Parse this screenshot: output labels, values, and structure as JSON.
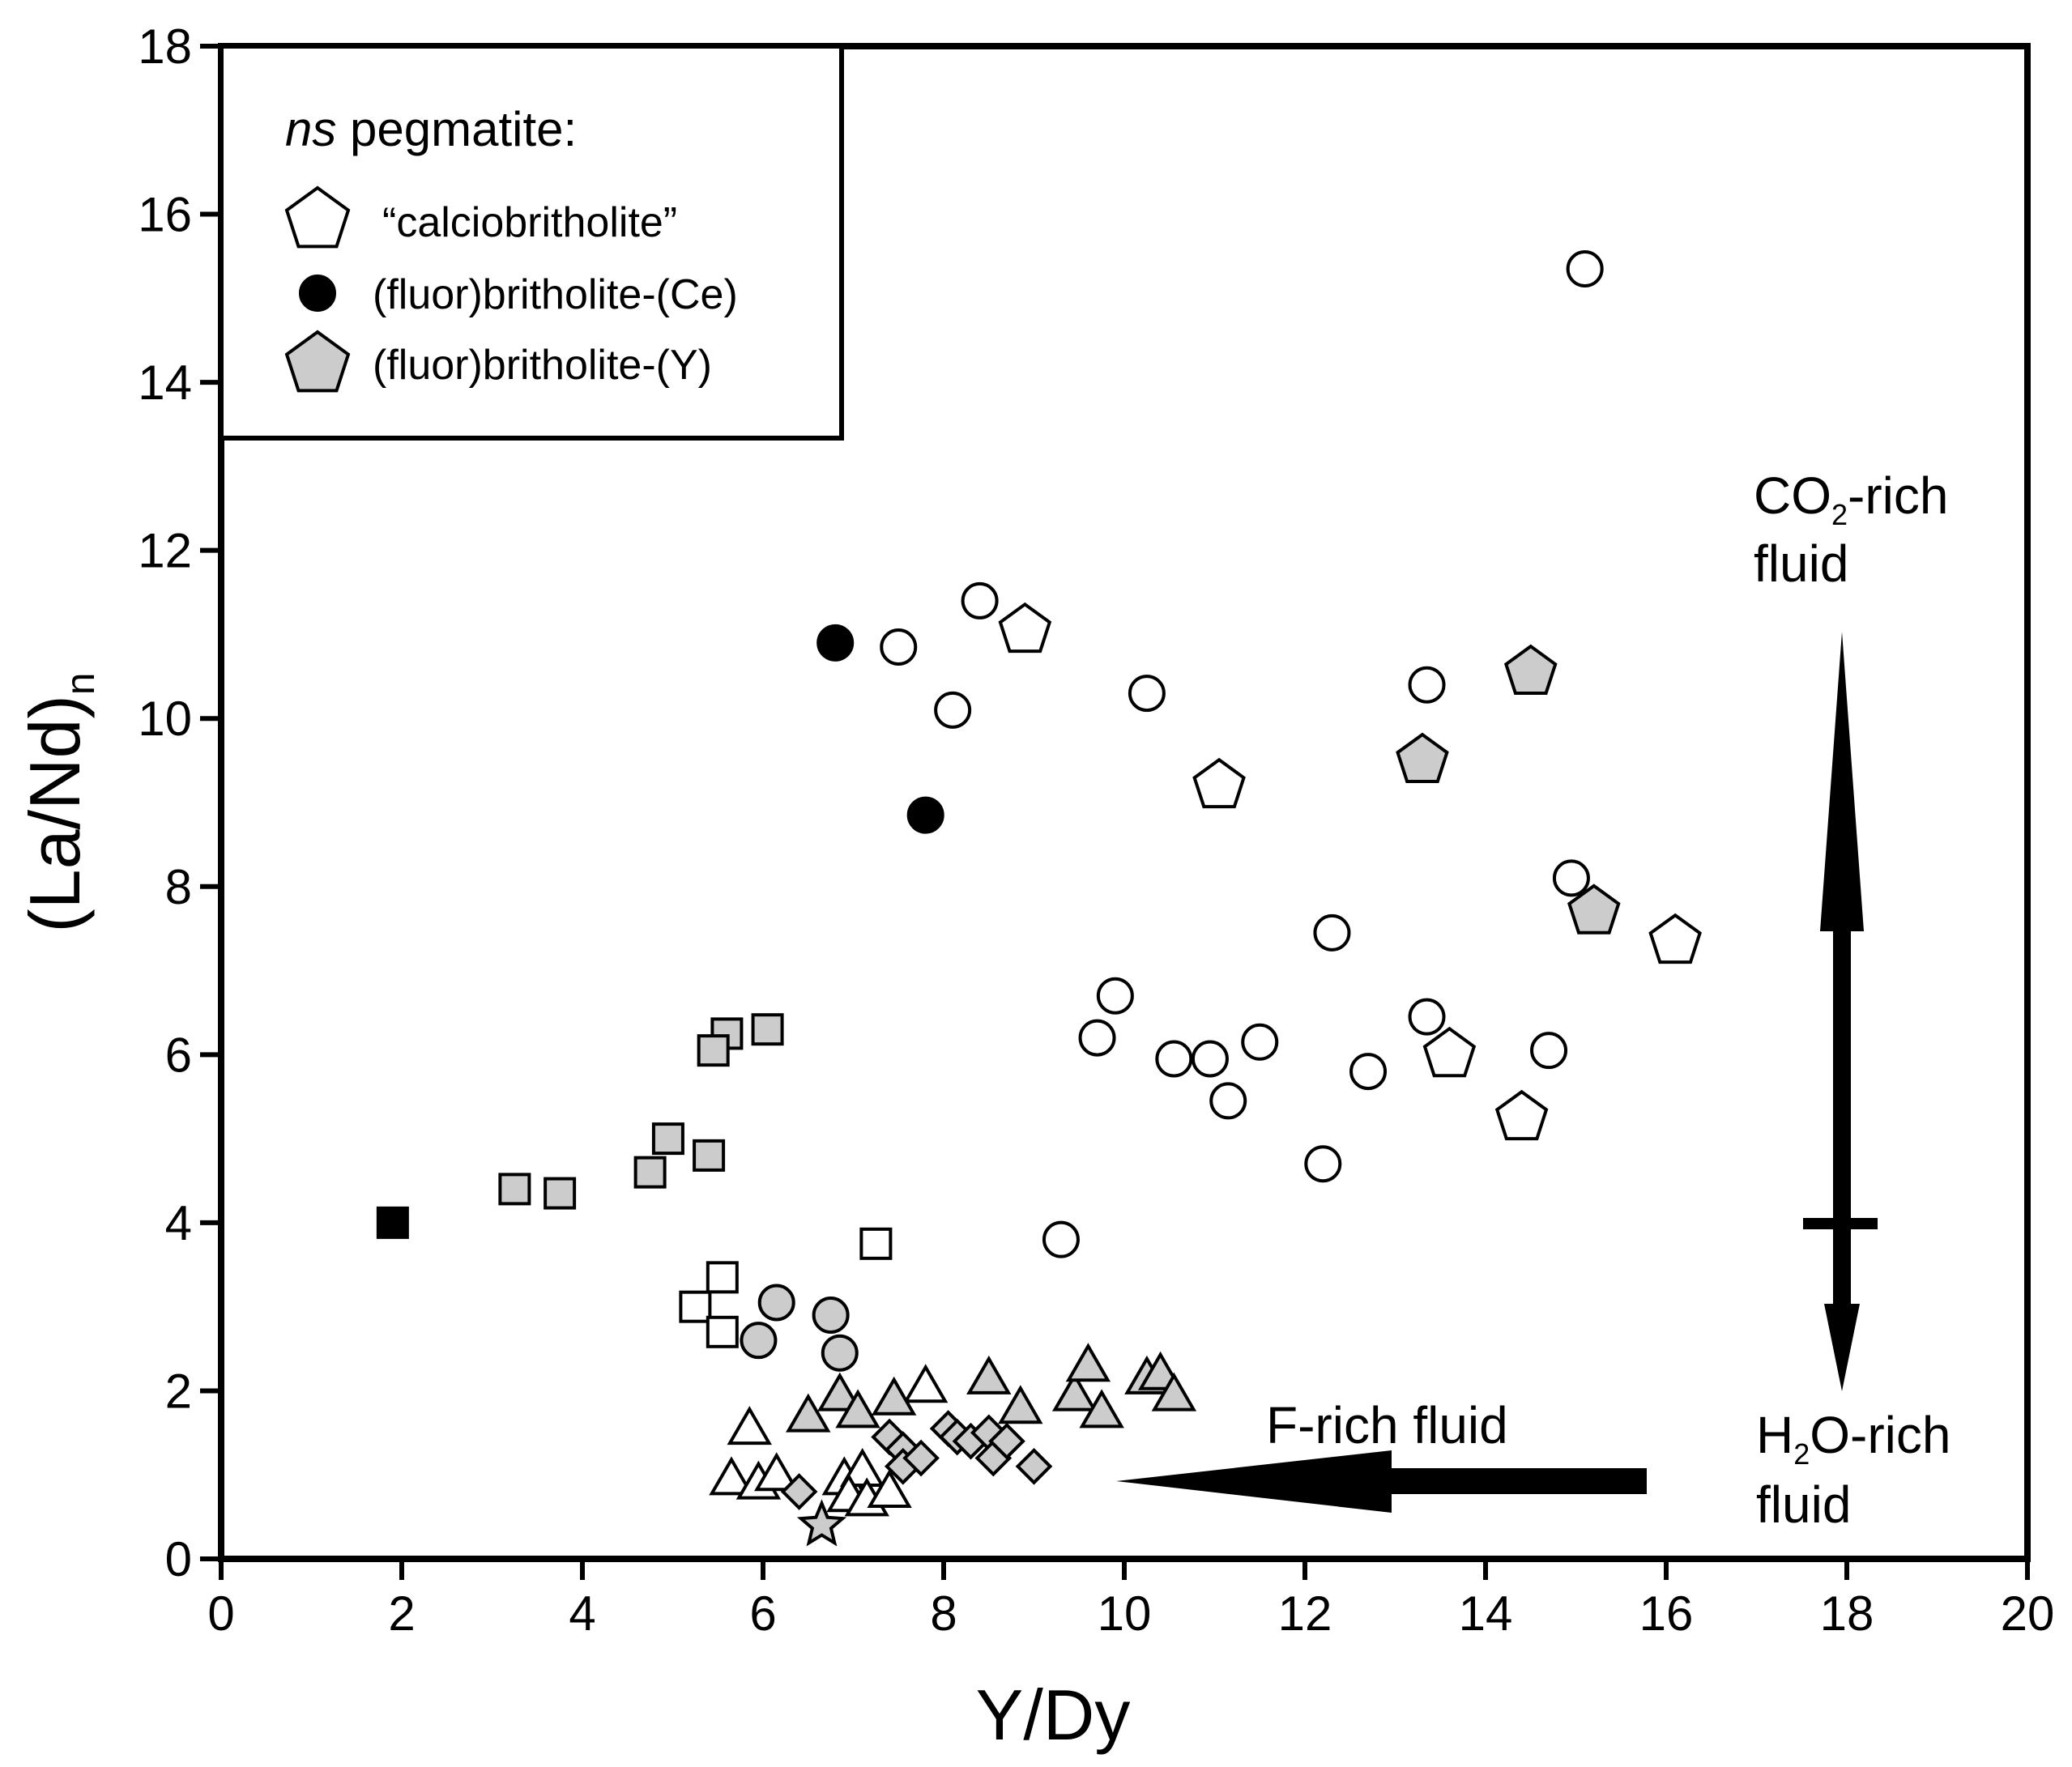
{
  "chart_data": {
    "type": "scatter",
    "title": "",
    "xlabel": "Y/Dy",
    "ylabel_main": "(La/Nd)",
    "ylabel_sub": "n",
    "xlim": [
      0,
      20
    ],
    "ylim": [
      0,
      18
    ],
    "xticks": [
      "0",
      "2",
      "4",
      "6",
      "8",
      "10",
      "12",
      "14",
      "16",
      "18",
      "20"
    ],
    "yticks": [
      "0",
      "2",
      "4",
      "6",
      "8",
      "10",
      "12",
      "14",
      "16",
      "18"
    ],
    "legend": {
      "title_italic": "ns",
      "title_rest": " pegmatite:",
      "position": "top-left",
      "entries": [
        {
          "label": "“calciobritholite”",
          "marker": "pentagon",
          "fill": "#ffffff"
        },
        {
          "label": "(fluor)britholite-(Ce)",
          "marker": "circle",
          "fill": "#000000"
        },
        {
          "label": "(fluor)britholite-(Y)",
          "marker": "pentagon",
          "fill": "#cccccc"
        }
      ]
    },
    "annotations": {
      "co2_main": "CO",
      "co2_sub": "2",
      "co2_rest": "-rich",
      "co2_line2": "fluid",
      "h2o_main": "H",
      "h2o_sub": "2",
      "h2o_rest": "O-rich",
      "h2o_line2": "fluid",
      "f_rich": "F-rich fluid"
    },
    "series": [
      {
        "name": "calciobritholite",
        "marker": "pentagon",
        "fill": "#ffffff",
        "points": [
          [
            8.9,
            11.05
          ],
          [
            11.05,
            9.2
          ],
          [
            16.1,
            7.35
          ],
          [
            13.6,
            6.0
          ],
          [
            14.4,
            5.25
          ]
        ]
      },
      {
        "name": "fluorbritholite-Ce",
        "marker": "circle",
        "fill": "#000000",
        "points": [
          [
            6.8,
            10.9
          ],
          [
            7.8,
            8.85
          ]
        ]
      },
      {
        "name": "fluorbritholite-Y",
        "marker": "pentagon",
        "fill": "#cccccc",
        "points": [
          [
            14.5,
            10.55
          ],
          [
            13.3,
            9.5
          ],
          [
            15.2,
            7.7
          ]
        ]
      },
      {
        "name": "open circles",
        "marker": "circle",
        "fill": "#ffffff",
        "points": [
          [
            15.1,
            15.35
          ],
          [
            8.4,
            11.4
          ],
          [
            7.5,
            10.85
          ],
          [
            8.1,
            10.1
          ],
          [
            10.25,
            10.3
          ],
          [
            13.35,
            10.4
          ],
          [
            14.95,
            8.1
          ],
          [
            12.3,
            7.45
          ],
          [
            9.9,
            6.7
          ],
          [
            9.7,
            6.2
          ],
          [
            10.55,
            5.95
          ],
          [
            10.95,
            5.95
          ],
          [
            11.5,
            6.15
          ],
          [
            11.15,
            5.45
          ],
          [
            12.7,
            5.8
          ],
          [
            13.35,
            6.45
          ],
          [
            14.7,
            6.05
          ],
          [
            12.2,
            4.7
          ],
          [
            9.3,
            3.8
          ]
        ]
      },
      {
        "name": "gray circles",
        "marker": "circle",
        "fill": "#cccccc",
        "points": [
          [
            6.15,
            3.05
          ],
          [
            6.75,
            2.9
          ],
          [
            6.85,
            2.45
          ],
          [
            5.95,
            2.6
          ]
        ]
      },
      {
        "name": "black square",
        "marker": "square",
        "fill": "#000000",
        "points": [
          [
            1.9,
            4.0
          ]
        ]
      },
      {
        "name": "gray squares",
        "marker": "square",
        "fill": "#cccccc",
        "points": [
          [
            6.05,
            6.3
          ],
          [
            5.6,
            6.25
          ],
          [
            5.45,
            6.05
          ],
          [
            4.95,
            5.0
          ],
          [
            5.4,
            4.8
          ],
          [
            4.75,
            4.6
          ],
          [
            3.25,
            4.4
          ],
          [
            3.75,
            4.35
          ]
        ]
      },
      {
        "name": "open squares",
        "marker": "square",
        "fill": "#ffffff",
        "points": [
          [
            7.25,
            3.75
          ],
          [
            5.55,
            3.35
          ],
          [
            5.25,
            3.0
          ],
          [
            5.55,
            2.7
          ]
        ]
      },
      {
        "name": "open triangles",
        "marker": "triangle",
        "fill": "#ffffff",
        "points": [
          [
            5.85,
            1.55
          ],
          [
            7.8,
            2.05
          ],
          [
            5.65,
            0.95
          ],
          [
            5.95,
            0.9
          ],
          [
            6.15,
            1.0
          ],
          [
            6.9,
            0.95
          ],
          [
            7.1,
            1.05
          ],
          [
            6.95,
            0.75
          ],
          [
            7.15,
            0.7
          ],
          [
            7.4,
            0.8
          ]
        ]
      },
      {
        "name": "gray triangles",
        "marker": "triangle",
        "fill": "#cccccc",
        "points": [
          [
            6.5,
            1.7
          ],
          [
            6.85,
            1.95
          ],
          [
            7.05,
            1.75
          ],
          [
            7.45,
            1.9
          ],
          [
            8.5,
            2.15
          ],
          [
            8.85,
            1.8
          ],
          [
            9.45,
            1.95
          ],
          [
            9.6,
            2.3
          ],
          [
            9.75,
            1.75
          ],
          [
            10.25,
            2.15
          ],
          [
            10.4,
            2.2
          ],
          [
            10.55,
            1.95
          ]
        ]
      },
      {
        "name": "gray diamonds",
        "marker": "diamond",
        "fill": "#cccccc",
        "points": [
          [
            7.4,
            1.45
          ],
          [
            7.55,
            1.3
          ],
          [
            7.55,
            1.1
          ],
          [
            7.75,
            1.2
          ],
          [
            8.05,
            1.55
          ],
          [
            8.15,
            1.45
          ],
          [
            8.3,
            1.4
          ],
          [
            8.5,
            1.5
          ],
          [
            8.55,
            1.2
          ],
          [
            8.7,
            1.4
          ],
          [
            9.0,
            1.1
          ],
          [
            6.4,
            0.8
          ]
        ]
      },
      {
        "name": "gray star",
        "marker": "star",
        "fill": "#cccccc",
        "points": [
          [
            6.65,
            0.4
          ]
        ]
      }
    ]
  }
}
